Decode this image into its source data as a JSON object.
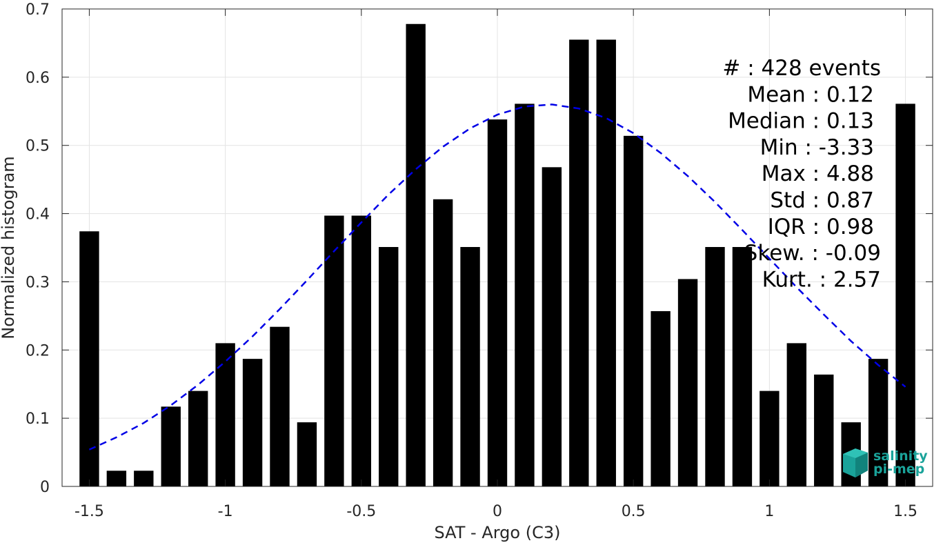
{
  "chart_data": {
    "type": "bar",
    "xlabel": "SAT - Argo (C3)",
    "ylabel": "Normalized histogram",
    "xlim": [
      -1.6,
      1.6
    ],
    "ylim": [
      0,
      0.7
    ],
    "xticks": [
      -1.5,
      -1,
      -0.5,
      0,
      0.5,
      1,
      1.5
    ],
    "xtick_labels": [
      "-1.5",
      "-1",
      "-0.5",
      "0",
      "0.5",
      "1",
      "1.5"
    ],
    "yticks": [
      0,
      0.1,
      0.2,
      0.3,
      0.4,
      0.5,
      0.6,
      0.7
    ],
    "ytick_labels": [
      "0",
      "0.1",
      "0.2",
      "0.3",
      "0.4",
      "0.5",
      "0.6",
      "0.7"
    ],
    "grid": true,
    "bin_width": 0.1,
    "x": [
      -1.5,
      -1.4,
      -1.3,
      -1.2,
      -1.1,
      -1.0,
      -0.9,
      -0.8,
      -0.7,
      -0.6,
      -0.5,
      -0.4,
      -0.3,
      -0.2,
      -0.1,
      0.0,
      0.1,
      0.2,
      0.3,
      0.4,
      0.5,
      0.6,
      0.7,
      0.8,
      0.9,
      1.0,
      1.1,
      1.2,
      1.3,
      1.4,
      1.5
    ],
    "values": [
      0.374,
      0.023,
      0.023,
      0.117,
      0.14,
      0.21,
      0.187,
      0.234,
      0.094,
      0.397,
      0.397,
      0.351,
      0.678,
      0.421,
      0.351,
      0.538,
      0.561,
      0.468,
      0.655,
      0.655,
      0.514,
      0.257,
      0.304,
      0.351,
      0.351,
      0.14,
      0.21,
      0.164,
      0.094,
      0.187,
      0.561
    ],
    "bar_color": "#000000",
    "fit_curve": {
      "style": "dashed",
      "color": "#0000e6",
      "x": [
        -1.5,
        -1.4,
        -1.3,
        -1.2,
        -1.1,
        -1.0,
        -0.9,
        -0.8,
        -0.7,
        -0.6,
        -0.5,
        -0.4,
        -0.3,
        -0.2,
        -0.1,
        0.0,
        0.1,
        0.2,
        0.3,
        0.4,
        0.5,
        0.6,
        0.7,
        0.8,
        0.9,
        1.0,
        1.1,
        1.2,
        1.3,
        1.4,
        1.5
      ],
      "y": [
        0.054,
        0.072,
        0.093,
        0.119,
        0.149,
        0.183,
        0.22,
        0.26,
        0.302,
        0.345,
        0.387,
        0.428,
        0.465,
        0.498,
        0.525,
        0.545,
        0.557,
        0.56,
        0.554,
        0.54,
        0.518,
        0.489,
        0.455,
        0.417,
        0.376,
        0.334,
        0.292,
        0.252,
        0.213,
        0.178,
        0.146
      ]
    },
    "annotations": [
      "#  : 428 events",
      "Mean : 0.12",
      "Median : 0.13",
      "Min : -3.33",
      "Max : 4.88",
      "Std : 0.87",
      "IQR : 0.98",
      "Skew. : -0.09",
      "Kurt. : 2.57"
    ]
  },
  "logo": {
    "line1": "salinity",
    "line2": "pi-mep",
    "color": "#1aa39a"
  }
}
